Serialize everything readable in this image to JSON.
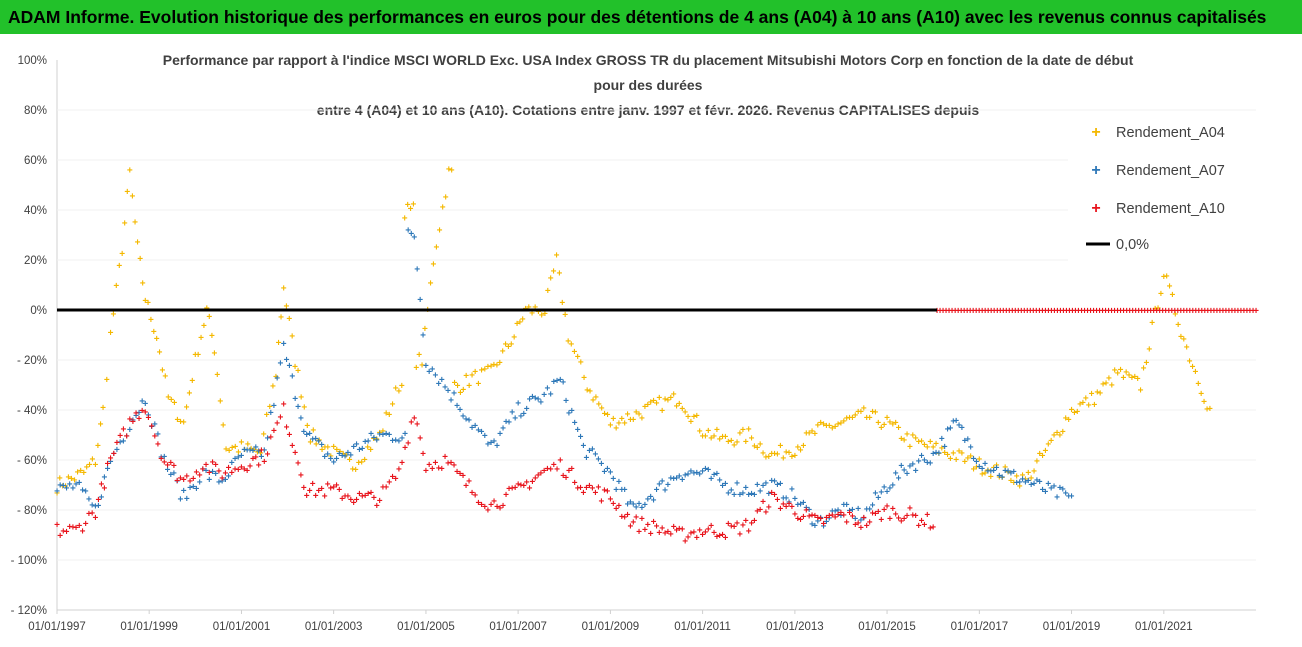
{
  "banner": "ADAM Informe. Evolution historique des performances en euros pour des détentions de 4 ans (A04) à 10 ans (A10) avec les revenus connus capitalisés",
  "chart_data": {
    "type": "scatter",
    "title_lines": [
      "Performance par rapport à l'indice MSCI WORLD Exc. USA Index GROSS TR  du placement Mitsubishi Motors Corp en fonction de la date de début",
      "pour des durées",
      "entre 4 (A04) et 10 ans (A10). Cotations entre janv. 1997 et févr. 2026. Revenus CAPITALISES depuis"
    ],
    "x_tick_labels": [
      "01/01/1997",
      "01/01/1999",
      "01/01/2001",
      "01/01/2003",
      "01/01/2005",
      "01/01/2007",
      "01/01/2009",
      "01/01/2011",
      "01/01/2013",
      "01/01/2015",
      "01/01/2017",
      "01/01/2019",
      "01/01/2021"
    ],
    "y_tick_labels": [
      "100%",
      "80%",
      "60%",
      "40%",
      "20%",
      "0%",
      "- 20%",
      "- 40%",
      "- 60%",
      "- 80%",
      "- 100%",
      "- 120%"
    ],
    "xlim": [
      "1997-01-01",
      "2023-01-01"
    ],
    "ylim": [
      -120,
      100
    ],
    "legend_position": "right",
    "series": [
      {
        "name": "Rendement_A04",
        "color": "#f4b800",
        "marker": "+",
        "points": [
          [
            "1997-01-01",
            -70
          ],
          [
            "1997-04-01",
            -68
          ],
          [
            "1997-08-01",
            -65
          ],
          [
            "1997-11-01",
            -60
          ],
          [
            "1998-01-01",
            -40
          ],
          [
            "1998-03-01",
            -10
          ],
          [
            "1998-06-01",
            25
          ],
          [
            "1998-08-01",
            55
          ],
          [
            "1998-10-01",
            25
          ],
          [
            "1998-12-01",
            5
          ],
          [
            "1999-03-01",
            -10
          ],
          [
            "1999-06-01",
            -35
          ],
          [
            "1999-10-01",
            -45
          ],
          [
            "2000-01-01",
            -20
          ],
          [
            "2000-04-01",
            0
          ],
          [
            "2000-06-01",
            -15
          ],
          [
            "2000-09-01",
            -55
          ],
          [
            "2001-01-01",
            -55
          ],
          [
            "2001-06-01",
            -57
          ],
          [
            "2001-10-01",
            -25
          ],
          [
            "2001-12-01",
            10
          ],
          [
            "2002-03-01",
            -20
          ],
          [
            "2002-07-01",
            -50
          ],
          [
            "2003-01-01",
            -57
          ],
          [
            "2003-06-01",
            -62
          ],
          [
            "2004-01-01",
            -50
          ],
          [
            "2004-06-01",
            -30
          ],
          [
            "2004-09-01",
            40
          ],
          [
            "2004-12-01",
            -20
          ],
          [
            "2005-03-01",
            20
          ],
          [
            "2005-07-01",
            55
          ],
          [
            "2005-10-01",
            -30
          ],
          [
            "2006-01-01",
            -27
          ],
          [
            "2006-06-01",
            -25
          ],
          [
            "2006-12-01",
            -10
          ],
          [
            "2007-03-01",
            0
          ],
          [
            "2007-08-01",
            0
          ],
          [
            "2007-11-01",
            20
          ],
          [
            "2008-02-01",
            -10
          ],
          [
            "2008-07-01",
            -30
          ],
          [
            "2009-01-01",
            -45
          ],
          [
            "2009-07-01",
            -42
          ],
          [
            "2010-01-01",
            -38
          ],
          [
            "2010-07-01",
            -35
          ],
          [
            "2011-01-01",
            -48
          ],
          [
            "2011-07-01",
            -52
          ],
          [
            "2012-01-01",
            -50
          ],
          [
            "2012-07-01",
            -58
          ],
          [
            "2013-01-01",
            -55
          ],
          [
            "2013-07-01",
            -48
          ],
          [
            "2014-01-01",
            -45
          ],
          [
            "2014-07-01",
            -42
          ],
          [
            "2015-01-01",
            -45
          ],
          [
            "2015-07-01",
            -52
          ],
          [
            "2016-01-01",
            -55
          ],
          [
            "2016-07-01",
            -58
          ],
          [
            "2017-01-01",
            -62
          ],
          [
            "2017-07-01",
            -65
          ],
          [
            "2018-01-01",
            -68
          ],
          [
            "2018-07-01",
            -55
          ],
          [
            "2019-01-01",
            -40
          ],
          [
            "2019-07-01",
            -35
          ],
          [
            "2020-01-01",
            -25
          ],
          [
            "2020-07-01",
            -30
          ],
          [
            "2021-01-01",
            15
          ],
          [
            "2021-07-01",
            -15
          ],
          [
            "2022-01-01",
            -40
          ]
        ]
      },
      {
        "name": "Rendement_A07",
        "color": "#2e78b8",
        "marker": "+",
        "points": [
          [
            "1997-01-01",
            -72
          ],
          [
            "1997-06-01",
            -70
          ],
          [
            "1997-11-01",
            -80
          ],
          [
            "1998-03-01",
            -60
          ],
          [
            "1998-08-01",
            -45
          ],
          [
            "1998-12-01",
            -35
          ],
          [
            "1999-05-01",
            -60
          ],
          [
            "1999-10-01",
            -75
          ],
          [
            "2000-03-01",
            -65
          ],
          [
            "2000-08-01",
            -68
          ],
          [
            "2001-01-01",
            -58
          ],
          [
            "2001-07-01",
            -57
          ],
          [
            "2001-12-01",
            -15
          ],
          [
            "2002-06-01",
            -50
          ],
          [
            "2003-01-01",
            -60
          ],
          [
            "2003-07-01",
            -55
          ],
          [
            "2004-01-01",
            -50
          ],
          [
            "2004-06-01",
            -50
          ],
          [
            "2004-10-01",
            30
          ],
          [
            "2005-01-01",
            -20
          ],
          [
            "2005-06-01",
            -30
          ],
          [
            "2006-01-01",
            -45
          ],
          [
            "2006-06-01",
            -55
          ],
          [
            "2007-01-01",
            -40
          ],
          [
            "2007-07-01",
            -35
          ],
          [
            "2007-12-01",
            -28
          ],
          [
            "2008-06-01",
            -55
          ],
          [
            "2009-01-01",
            -65
          ],
          [
            "2009-07-01",
            -80
          ],
          [
            "2010-01-01",
            -72
          ],
          [
            "2010-07-01",
            -65
          ],
          [
            "2011-01-01",
            -65
          ],
          [
            "2011-07-01",
            -70
          ],
          [
            "2012-01-01",
            -72
          ],
          [
            "2012-07-01",
            -70
          ],
          [
            "2013-01-01",
            -75
          ],
          [
            "2013-07-01",
            -85
          ],
          [
            "2014-01-01",
            -80
          ],
          [
            "2014-07-01",
            -82
          ],
          [
            "2015-01-01",
            -70
          ],
          [
            "2015-07-01",
            -62
          ],
          [
            "2016-01-01",
            -58
          ],
          [
            "2016-07-01",
            -45
          ],
          [
            "2017-01-01",
            -60
          ],
          [
            "2017-07-01",
            -65
          ],
          [
            "2018-01-01",
            -68
          ],
          [
            "2018-07-01",
            -72
          ],
          [
            "2019-01-01",
            -75
          ]
        ]
      },
      {
        "name": "Rendement_A10",
        "color": "#e8141c",
        "marker": "+",
        "points": [
          [
            "1997-01-01",
            -88
          ],
          [
            "1997-06-01",
            -88
          ],
          [
            "1997-11-01",
            -80
          ],
          [
            "1998-03-01",
            -60
          ],
          [
            "1998-08-01",
            -45
          ],
          [
            "1998-12-01",
            -38
          ],
          [
            "1999-05-01",
            -60
          ],
          [
            "1999-10-01",
            -68
          ],
          [
            "2000-03-01",
            -62
          ],
          [
            "2000-08-01",
            -65
          ],
          [
            "2001-01-01",
            -62
          ],
          [
            "2001-07-01",
            -58
          ],
          [
            "2001-12-01",
            -40
          ],
          [
            "2002-06-01",
            -72
          ],
          [
            "2003-01-01",
            -72
          ],
          [
            "2003-07-01",
            -75
          ],
          [
            "2004-01-01",
            -75
          ],
          [
            "2004-06-01",
            -65
          ],
          [
            "2004-10-01",
            -40
          ],
          [
            "2005-01-01",
            -62
          ],
          [
            "2005-06-01",
            -60
          ],
          [
            "2006-01-01",
            -72
          ],
          [
            "2006-06-01",
            -78
          ],
          [
            "2007-01-01",
            -72
          ],
          [
            "2007-07-01",
            -65
          ],
          [
            "2007-12-01",
            -62
          ],
          [
            "2008-06-01",
            -70
          ],
          [
            "2009-01-01",
            -75
          ],
          [
            "2009-07-01",
            -85
          ],
          [
            "2010-01-01",
            -87
          ],
          [
            "2010-07-01",
            -90
          ],
          [
            "2011-01-01",
            -88
          ],
          [
            "2011-07-01",
            -88
          ],
          [
            "2012-01-01",
            -86
          ],
          [
            "2012-07-01",
            -75
          ],
          [
            "2013-01-01",
            -80
          ],
          [
            "2013-07-01",
            -85
          ],
          [
            "2014-01-01",
            -82
          ],
          [
            "2014-07-01",
            -85
          ],
          [
            "2015-01-01",
            -80
          ],
          [
            "2015-07-01",
            -82
          ],
          [
            "2016-01-01",
            -85
          ],
          [
            "2016-02-01",
            0
          ],
          [
            "2023-01-01",
            0
          ]
        ]
      }
    ],
    "reference_line": {
      "name": "0,0%",
      "value": 0,
      "color": "#000000"
    }
  }
}
